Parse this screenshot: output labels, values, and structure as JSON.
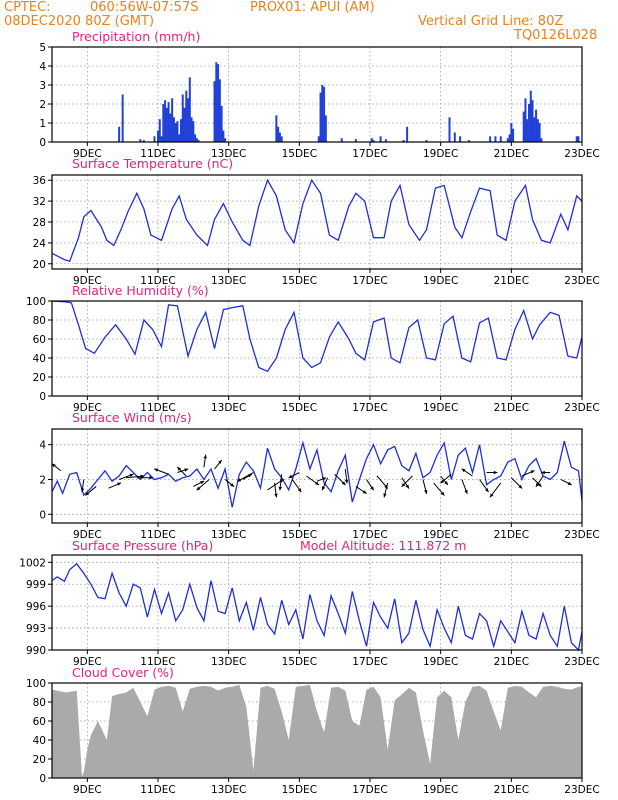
{
  "header": {
    "source": "CPTEC:",
    "location": "060:56W-07:57S",
    "station": "PROX01: APUI (AM)",
    "run": "08DEC2020 80Z (GMT)",
    "grid_note": "Vertical Grid Line: 80Z",
    "model": "TQ0126L028"
  },
  "colors": {
    "header": "#e8821e",
    "title": "#e0257f",
    "line": "#1f2fd6",
    "bar": "#2040d8",
    "cloud": "#aaaaaa",
    "grid": "#999999"
  },
  "x_ticks": [
    "9DEC",
    "11DEC",
    "13DEC",
    "15DEC",
    "17DEC",
    "19DEC",
    "21DEC",
    "23DEC"
  ],
  "chart_data": [
    {
      "id": "precip",
      "type": "bar",
      "title": "Precipitation (mm/h)",
      "xlabel": "",
      "ylabel": "",
      "xlim_days": [
        8.0,
        23.0
      ],
      "ylim": [
        0,
        5
      ],
      "yticks": [
        0,
        1,
        2,
        3,
        4,
        5
      ],
      "grid": true,
      "x_day": [
        9.9,
        10.0,
        10.5,
        10.6,
        10.9,
        11.0,
        11.05,
        11.1,
        11.15,
        11.2,
        11.25,
        11.3,
        11.35,
        11.4,
        11.45,
        11.5,
        11.55,
        11.6,
        11.65,
        11.7,
        11.75,
        11.8,
        11.85,
        11.9,
        11.95,
        12.0,
        12.05,
        12.1,
        12.15,
        12.6,
        12.65,
        12.7,
        12.75,
        12.8,
        12.85,
        12.9,
        14.35,
        14.4,
        14.45,
        14.5,
        15.55,
        15.6,
        15.65,
        15.7,
        15.75,
        16.2,
        16.6,
        17.05,
        17.1,
        17.3,
        17.45,
        17.95,
        18.05,
        18.6,
        19.25,
        19.4,
        19.55,
        19.8,
        20.4,
        20.55,
        20.7,
        20.9,
        20.95,
        21.0,
        21.05,
        21.35,
        21.4,
        21.45,
        21.5,
        21.55,
        21.6,
        21.65,
        21.7,
        21.75,
        21.8,
        21.85,
        22.85,
        22.9
      ],
      "values": [
        0.8,
        2.5,
        0.15,
        0.1,
        0.3,
        0.6,
        1.2,
        0.3,
        2.0,
        2.2,
        1.8,
        2.1,
        1.5,
        2.3,
        1.3,
        1.0,
        1.1,
        0.4,
        1.2,
        2.5,
        1.8,
        2.7,
        2.3,
        3.4,
        1.3,
        1.1,
        0.4,
        0.2,
        0.1,
        3.2,
        4.2,
        4.1,
        3.3,
        1.9,
        0.6,
        0.2,
        1.4,
        0.8,
        0.5,
        0.3,
        0.3,
        2.6,
        3.0,
        2.9,
        1.4,
        0.2,
        0.15,
        0.2,
        0.1,
        0.3,
        0.15,
        0.1,
        0.8,
        0.1,
        1.3,
        0.5,
        0.3,
        0.1,
        0.3,
        0.3,
        0.3,
        0.2,
        0.4,
        1.0,
        0.7,
        1.6,
        2.3,
        1.2,
        2.0,
        2.7,
        2.2,
        1.3,
        1.7,
        1.2,
        1.0,
        0.2,
        0.3,
        0.3
      ]
    },
    {
      "id": "temperature",
      "type": "line",
      "title": "Surface Temperature (nC)",
      "xlabel": "",
      "ylabel": "",
      "xlim_days": [
        8.0,
        23.0
      ],
      "ylim": [
        19,
        37
      ],
      "yticks": [
        20,
        24,
        28,
        32,
        36
      ],
      "grid": true,
      "x_day": [
        8.0,
        8.35,
        8.5,
        8.75,
        8.9,
        9.1,
        9.4,
        9.55,
        9.75,
        9.95,
        10.15,
        10.4,
        10.6,
        10.8,
        11.1,
        11.4,
        11.6,
        11.8,
        12.1,
        12.4,
        12.6,
        12.85,
        13.1,
        13.4,
        13.6,
        13.85,
        14.1,
        14.35,
        14.6,
        14.85,
        15.1,
        15.35,
        15.6,
        15.85,
        16.1,
        16.4,
        16.6,
        16.85,
        17.1,
        17.4,
        17.6,
        17.85,
        18.1,
        18.4,
        18.6,
        18.85,
        19.1,
        19.4,
        19.6,
        19.85,
        20.1,
        20.4,
        20.6,
        20.85,
        21.1,
        21.4,
        21.6,
        21.85,
        22.1,
        22.4,
        22.6,
        22.85,
        23.0
      ],
      "values": [
        22.0,
        20.8,
        20.5,
        25.0,
        29.0,
        30.2,
        27.0,
        24.5,
        23.5,
        26.5,
        30.0,
        33.5,
        30.5,
        25.5,
        24.5,
        30.5,
        33.0,
        28.5,
        25.5,
        23.5,
        28.5,
        31.5,
        28.0,
        24.5,
        23.5,
        31.0,
        36.0,
        33.0,
        26.5,
        24.0,
        31.5,
        36.0,
        33.5,
        25.5,
        24.5,
        31.0,
        33.5,
        32.0,
        25.0,
        25.0,
        32.0,
        35.0,
        27.5,
        24.5,
        26.5,
        34.5,
        35.0,
        27.0,
        25.0,
        30.0,
        34.5,
        34.0,
        25.5,
        24.5,
        32.0,
        35.0,
        28.5,
        24.5,
        24.0,
        29.5,
        26.5,
        33.0,
        32.0
      ]
    },
    {
      "id": "humidity",
      "type": "line",
      "title": "Relative Humidity (%)",
      "xlabel": "",
      "ylabel": "",
      "xlim_days": [
        8.0,
        23.0
      ],
      "ylim": [
        0,
        100
      ],
      "yticks": [
        0,
        20,
        40,
        60,
        80,
        100
      ],
      "grid": true,
      "x_day": [
        8.0,
        8.4,
        8.55,
        8.75,
        8.95,
        9.2,
        9.5,
        9.8,
        10.1,
        10.35,
        10.6,
        10.85,
        11.1,
        11.3,
        11.55,
        11.85,
        12.1,
        12.35,
        12.6,
        12.85,
        13.1,
        13.4,
        13.6,
        13.85,
        14.1,
        14.35,
        14.6,
        14.85,
        15.1,
        15.35,
        15.6,
        15.85,
        16.1,
        16.4,
        16.6,
        16.85,
        17.1,
        17.4,
        17.6,
        17.85,
        18.1,
        18.35,
        18.6,
        18.85,
        19.1,
        19.35,
        19.6,
        19.85,
        20.1,
        20.35,
        20.6,
        20.85,
        21.1,
        21.35,
        21.6,
        21.8,
        22.1,
        22.35,
        22.6,
        22.85,
        23.0
      ],
      "values": [
        100,
        99,
        98,
        75,
        50,
        45,
        62,
        75,
        60,
        44,
        80,
        70,
        52,
        96,
        95,
        42,
        70,
        88,
        50,
        91,
        93,
        95,
        60,
        30,
        26,
        40,
        70,
        88,
        40,
        30,
        35,
        62,
        78,
        60,
        45,
        38,
        78,
        82,
        40,
        35,
        72,
        80,
        40,
        38,
        76,
        84,
        40,
        36,
        77,
        82,
        40,
        38,
        70,
        90,
        60,
        75,
        88,
        85,
        42,
        40,
        62
      ]
    },
    {
      "id": "wind",
      "type": "line",
      "title": "Surface Wind (m/s)",
      "xlabel": "",
      "ylabel": "",
      "xlim_days": [
        8.0,
        23.0
      ],
      "ylim": [
        -0.5,
        4.9
      ],
      "yticks": [
        0,
        2,
        4
      ],
      "grid": true,
      "x_day": [
        8.0,
        8.15,
        8.3,
        8.5,
        8.7,
        8.9,
        9.1,
        9.3,
        9.5,
        9.7,
        9.9,
        10.1,
        10.3,
        10.5,
        10.7,
        10.9,
        11.1,
        11.3,
        11.5,
        11.7,
        11.9,
        12.1,
        12.3,
        12.5,
        12.7,
        12.9,
        13.1,
        13.3,
        13.5,
        13.7,
        13.9,
        14.1,
        14.3,
        14.5,
        14.7,
        14.9,
        15.1,
        15.3,
        15.5,
        15.7,
        15.9,
        16.1,
        16.3,
        16.5,
        16.7,
        16.9,
        17.1,
        17.3,
        17.5,
        17.7,
        17.9,
        18.1,
        18.3,
        18.5,
        18.7,
        18.9,
        19.1,
        19.3,
        19.5,
        19.7,
        19.9,
        20.1,
        20.3,
        20.5,
        20.7,
        20.9,
        21.1,
        21.3,
        21.5,
        21.7,
        21.9,
        22.1,
        22.3,
        22.5,
        22.7,
        22.9,
        23.0
      ],
      "values": [
        1.3,
        1.9,
        1.2,
        2.3,
        2.4,
        1.1,
        1.5,
        2.0,
        2.5,
        1.9,
        2.2,
        2.8,
        2.4,
        2.0,
        2.4,
        2.0,
        2.1,
        2.3,
        1.9,
        2.1,
        2.2,
        2.6,
        2.0,
        2.6,
        1.5,
        2.6,
        0.4,
        2.3,
        3.0,
        2.5,
        1.5,
        3.8,
        2.6,
        2.1,
        1.4,
        2.6,
        4.1,
        2.6,
        3.7,
        1.8,
        1.3,
        2.5,
        3.4,
        0.7,
        2.0,
        3.2,
        4.0,
        2.9,
        3.7,
        3.9,
        2.8,
        2.5,
        3.5,
        2.1,
        2.4,
        3.4,
        4.1,
        2.0,
        3.4,
        3.8,
        2.4,
        4.0,
        1.7,
        2.0,
        2.2,
        3.0,
        3.2,
        2.0,
        2.8,
        3.2,
        2.2,
        2.0,
        2.4,
        4.2,
        2.7,
        2.5,
        0.8
      ]
    },
    {
      "id": "pressure",
      "type": "line",
      "title": "Surface Pressure (hPa)",
      "annotation": "Model Altitude: 111.872 m",
      "xlabel": "",
      "ylabel": "",
      "xlim_days": [
        8.0,
        23.0
      ],
      "ylim": [
        990,
        1003
      ],
      "yticks": [
        990,
        993,
        996,
        999,
        1002
      ],
      "grid": true,
      "x_day": [
        8.0,
        8.15,
        8.35,
        8.5,
        8.7,
        8.9,
        9.1,
        9.3,
        9.5,
        9.7,
        9.9,
        10.1,
        10.3,
        10.5,
        10.7,
        10.9,
        11.1,
        11.3,
        11.5,
        11.7,
        11.9,
        12.1,
        12.3,
        12.5,
        12.7,
        12.9,
        13.1,
        13.3,
        13.5,
        13.7,
        13.9,
        14.1,
        14.3,
        14.5,
        14.7,
        14.9,
        15.1,
        15.3,
        15.5,
        15.7,
        15.9,
        16.1,
        16.3,
        16.5,
        16.7,
        16.9,
        17.1,
        17.3,
        17.5,
        17.7,
        17.9,
        18.1,
        18.3,
        18.5,
        18.7,
        18.9,
        19.1,
        19.3,
        19.5,
        19.7,
        19.9,
        20.1,
        20.3,
        20.5,
        20.7,
        20.9,
        21.1,
        21.3,
        21.5,
        21.7,
        21.9,
        22.1,
        22.3,
        22.5,
        22.7,
        22.9,
        23.0
      ],
      "values": [
        999.5,
        1000.0,
        999.4,
        1001.0,
        1001.8,
        1000.5,
        999.0,
        997.2,
        997.0,
        1000.5,
        997.8,
        996.0,
        999.0,
        998.5,
        994.5,
        998.3,
        995.0,
        997.8,
        994.0,
        995.5,
        999.0,
        995.8,
        994.0,
        999.5,
        995.3,
        995.0,
        998.5,
        994.0,
        996.5,
        992.7,
        997.2,
        993.5,
        992.2,
        996.8,
        993.5,
        995.5,
        991.5,
        997.6,
        994.0,
        992.0,
        997.4,
        995.0,
        992.3,
        998.0,
        994.0,
        990.5,
        996.5,
        994.5,
        993.0,
        997.0,
        991.0,
        992.3,
        996.8,
        992.8,
        990.5,
        995.5,
        993.0,
        991.0,
        996.0,
        992.0,
        991.5,
        995.0,
        994.0,
        990.5,
        994.0,
        992.5,
        991.0,
        995.3,
        992.0,
        991.5,
        995.0,
        992.0,
        990.5,
        996.0,
        991.0,
        990.0,
        992.5
      ]
    },
    {
      "id": "cloud",
      "type": "area",
      "title": "Cloud Cover (%)",
      "xlabel": "",
      "ylabel": "",
      "xlim_days": [
        8.0,
        23.0
      ],
      "ylim": [
        0,
        100
      ],
      "yticks": [
        0,
        20,
        40,
        60,
        80,
        100
      ],
      "grid": true,
      "x_day": [
        8.0,
        8.4,
        8.7,
        8.85,
        8.9,
        9.0,
        9.1,
        9.3,
        9.55,
        9.7,
        9.85,
        10.1,
        10.3,
        10.5,
        10.7,
        10.9,
        11.1,
        11.3,
        11.5,
        11.7,
        11.9,
        12.1,
        12.3,
        12.5,
        12.7,
        12.9,
        13.1,
        13.3,
        13.5,
        13.7,
        13.9,
        14.1,
        14.3,
        14.5,
        14.7,
        14.9,
        15.1,
        15.3,
        15.5,
        15.7,
        15.9,
        16.1,
        16.3,
        16.5,
        16.7,
        16.9,
        17.1,
        17.3,
        17.5,
        17.7,
        17.9,
        18.1,
        18.3,
        18.5,
        18.7,
        18.9,
        19.1,
        19.3,
        19.5,
        19.7,
        19.9,
        20.1,
        20.3,
        20.5,
        20.7,
        20.9,
        21.1,
        21.3,
        21.5,
        21.7,
        21.9,
        22.1,
        22.3,
        22.5,
        22.7,
        22.9,
        23.0
      ],
      "values": [
        93,
        90,
        92,
        2,
        6,
        30,
        45,
        60,
        40,
        86,
        88,
        90,
        95,
        80,
        65,
        93,
        96,
        97,
        95,
        70,
        94,
        96,
        97,
        96,
        92,
        95,
        96,
        98,
        75,
        8,
        95,
        97,
        94,
        70,
        40,
        96,
        97,
        98,
        70,
        48,
        95,
        96,
        92,
        60,
        55,
        93,
        96,
        85,
        30,
        82,
        88,
        95,
        90,
        50,
        15,
        85,
        92,
        85,
        40,
        80,
        96,
        97,
        92,
        70,
        50,
        95,
        97,
        96,
        90,
        85,
        96,
        97,
        96,
        94,
        93,
        96,
        96
      ]
    }
  ],
  "wind_vectors": {
    "x_day": [
      8.25,
      8.9,
      9.25,
      9.6,
      9.9,
      10.1,
      10.4,
      11.3,
      11.55,
      11.8,
      12.0,
      12.3,
      12.45,
      12.6,
      12.9,
      13.4,
      13.7,
      14.1,
      14.3,
      14.5,
      14.8,
      15.0,
      15.2,
      15.5,
      15.8,
      16.0,
      16.3,
      16.6,
      16.9,
      17.2,
      17.5,
      17.9,
      18.2,
      18.5,
      18.8,
      19.0,
      19.3,
      19.6,
      19.9,
      20.1,
      20.3,
      20.7,
      21.0,
      21.3,
      21.6,
      21.9,
      22.1,
      22.4
    ],
    "y": [
      2.5,
      2.0,
      1.6,
      1.5,
      2.0,
      2.1,
      2.1,
      2.3,
      2.4,
      2.2,
      1.6,
      2.7,
      2.0,
      2.6,
      2.0,
      2.0,
      2.4,
      1.4,
      1.8,
      2.3,
      2.0,
      2.4,
      2.2,
      1.9,
      2.1,
      2.3,
      2.6,
      1.6,
      2.0,
      2.2,
      1.8,
      2.1,
      2.2,
      2.0,
      1.8,
      2.2,
      2.3,
      2.0,
      2.2,
      2.0,
      2.4,
      1.8,
      2.1,
      2.2,
      2.1,
      2.2,
      2.4,
      2.0
    ],
    "dx": [
      -0.5,
      -0.1,
      -0.6,
      0.7,
      0.8,
      1.0,
      0.9,
      -0.8,
      0.6,
      -0.5,
      0.6,
      0.1,
      -0.7,
      0.4,
      0.5,
      0.5,
      -0.9,
      0.9,
      0.1,
      -0.1,
      0.5,
      -0.6,
      0.7,
      0.5,
      -0.3,
      0.6,
      0.1,
      0.6,
      0.4,
      0.6,
      -0.2,
      0.4,
      -0.6,
      0.2,
      0.6,
      0.4,
      -0.6,
      0.3,
      -0.6,
      0.5,
      0.6,
      -0.6,
      0.6,
      0.7,
      0.5,
      -0.4,
      -0.5,
      0.6
    ],
    "dy": [
      0.4,
      -0.7,
      -0.5,
      0.3,
      0.3,
      0.1,
      0.0,
      0.3,
      0.2,
      0.5,
      0.3,
      0.7,
      -0.6,
      0.5,
      -0.4,
      0.3,
      -0.5,
      0.6,
      -0.8,
      -0.9,
      -0.7,
      -0.3,
      -0.5,
      0.2,
      -0.7,
      -0.6,
      -0.8,
      -0.4,
      -0.6,
      -0.7,
      -0.8,
      -0.6,
      -0.6,
      -0.8,
      -0.7,
      -0.5,
      -0.5,
      -0.8,
      0.4,
      -0.7,
      0.0,
      -0.8,
      -0.6,
      0.3,
      -0.5,
      -0.6,
      0.0,
      -0.3
    ]
  }
}
